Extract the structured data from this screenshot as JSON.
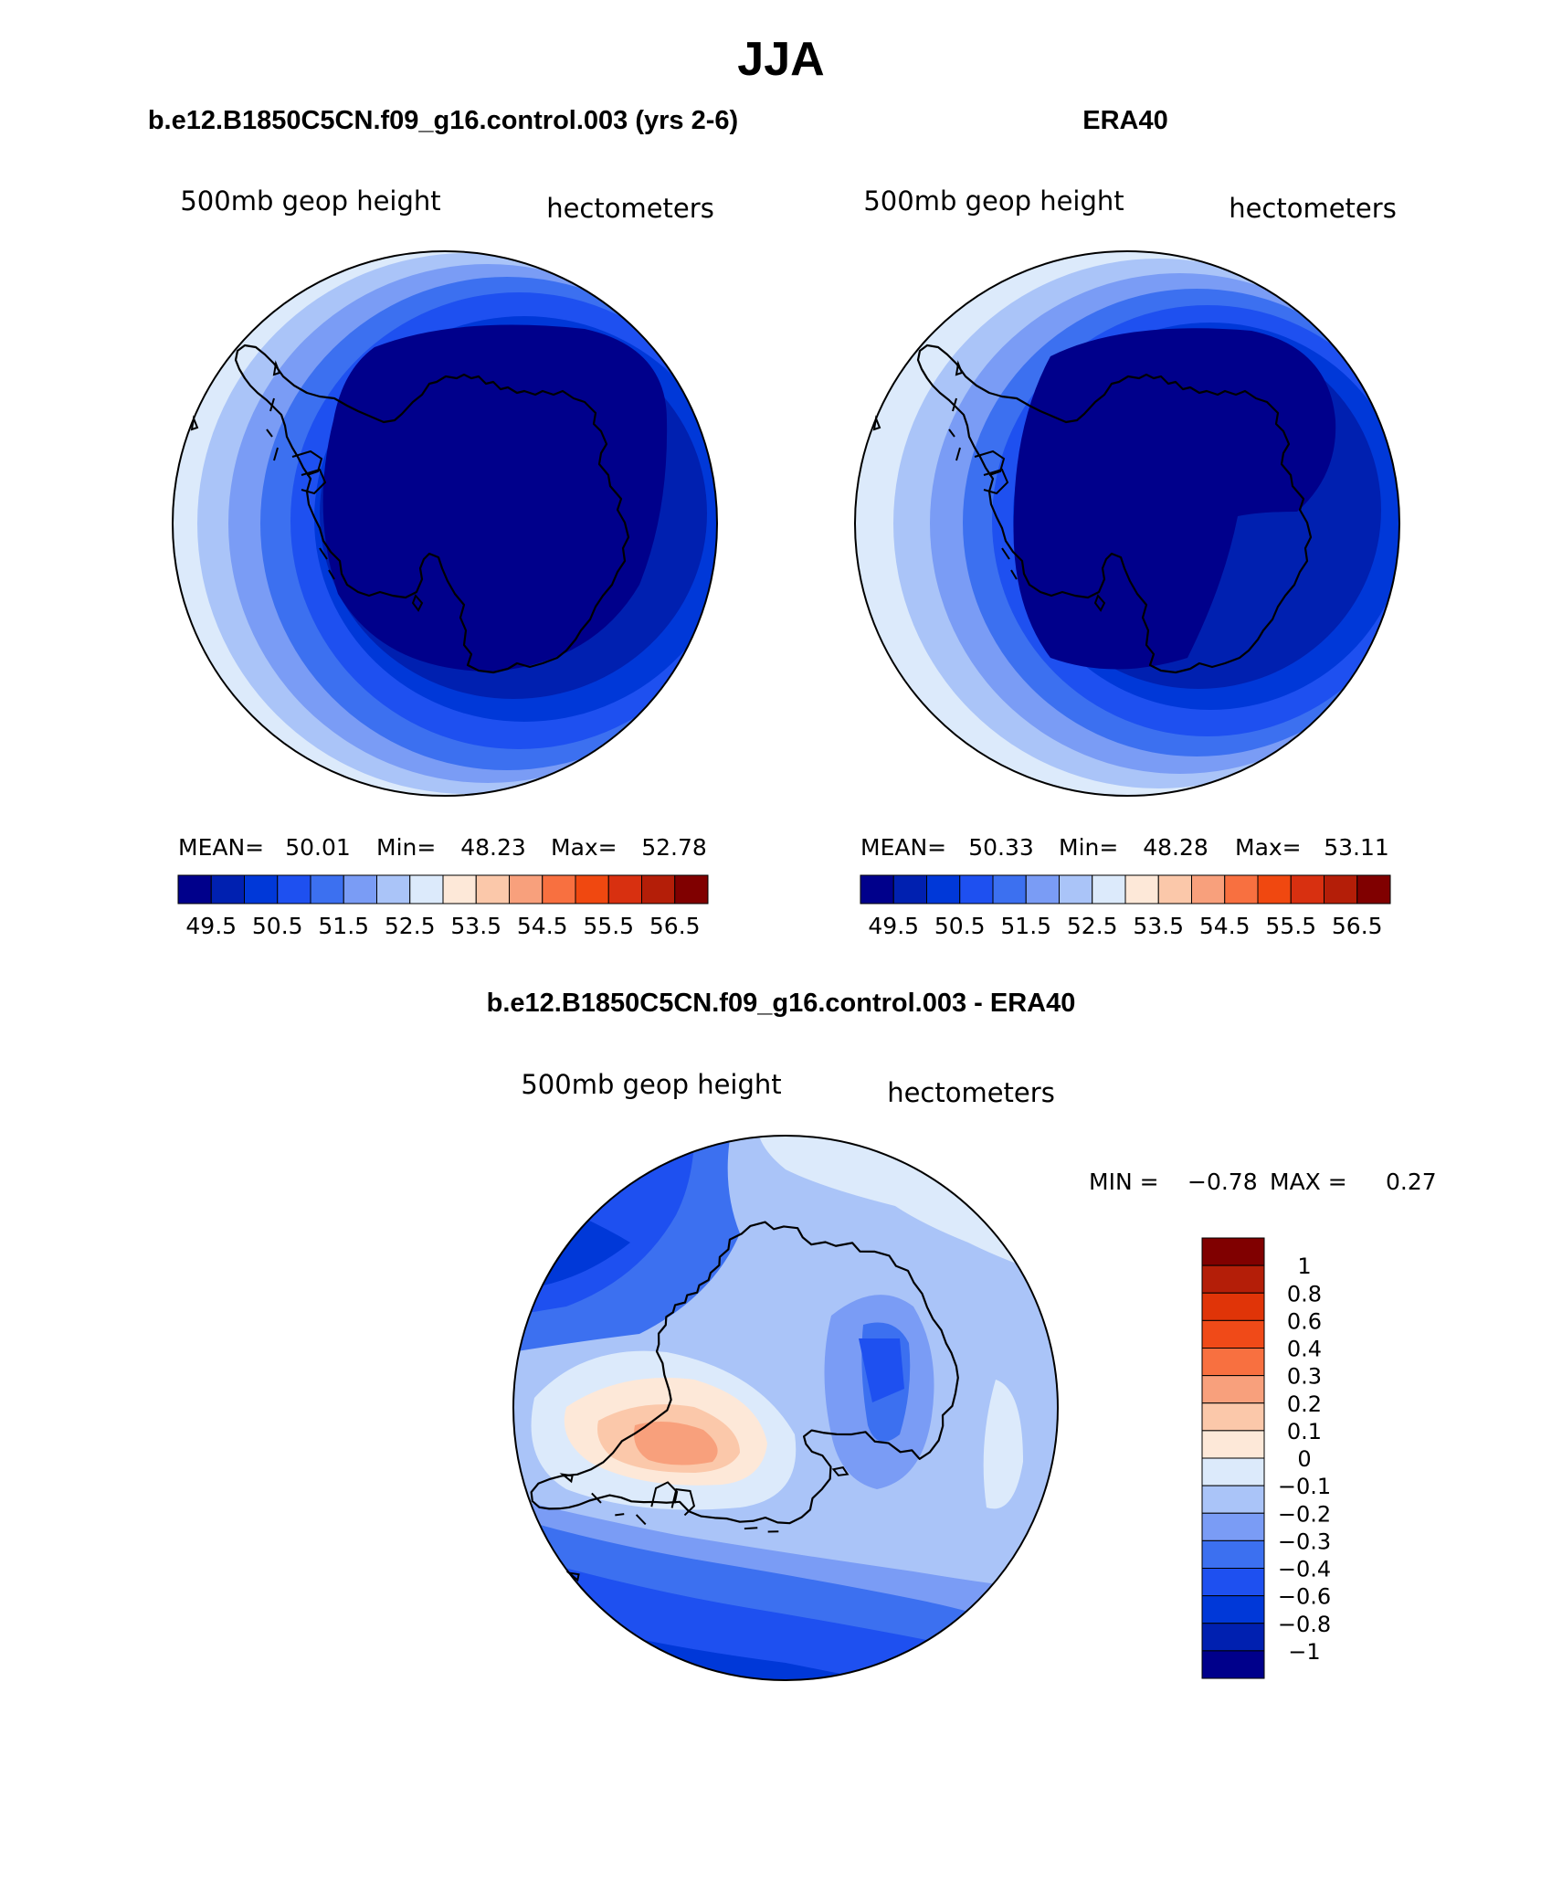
{
  "page_title": "JJA",
  "panels": {
    "model": {
      "title": "b.e12.B1850C5CN.f09_g16.control.003 (yrs 2-6)",
      "left_label": "500mb geop height",
      "right_label": "hectometers",
      "stats": {
        "mean_label": "MEAN=",
        "mean": "50.01",
        "min_label": "Min=",
        "min": "48.23",
        "max_label": "Max=",
        "max": "52.78"
      }
    },
    "obs": {
      "title": "ERA40",
      "left_label": "500mb geop height",
      "right_label": "hectometers",
      "stats": {
        "mean_label": "MEAN=",
        "mean": "50.33",
        "min_label": "Min=",
        "min": "48.28",
        "max_label": "Max=",
        "max": "53.11"
      }
    },
    "diff": {
      "title": "b.e12.B1850C5CN.f09_g16.control.003 - ERA40",
      "left_label": "500mb geop height",
      "right_label": "hectometers",
      "stats": {
        "min_label": "MIN =",
        "min": "−0.78",
        "max_label": "MAX =",
        "max": "0.27"
      }
    }
  },
  "colorbar_horizontal": {
    "colors": [
      "#00008b",
      "#0020b0",
      "#0038d8",
      "#1e50f0",
      "#3c70f0",
      "#7a9cf5",
      "#aac4f8",
      "#dceafb",
      "#fde8d8",
      "#fbc8aa",
      "#f8a07c",
      "#f87040",
      "#f04810",
      "#d83010",
      "#b41e08",
      "#800000"
    ],
    "labels": [
      "49.5",
      "50.5",
      "51.5",
      "52.5",
      "53.5",
      "54.5",
      "55.5",
      "56.5"
    ]
  },
  "colorbar_vertical": {
    "colors_top_to_bottom": [
      "#800000",
      "#b41e08",
      "#e03408",
      "#f04a18",
      "#f87040",
      "#f8a07c",
      "#fbc8aa",
      "#fde8d8",
      "#dceafb",
      "#aac4f8",
      "#7a9cf5",
      "#3c70f0",
      "#1e50f0",
      "#0038d8",
      "#0020b0",
      "#00008b"
    ],
    "labels": [
      "1",
      "0.8",
      "0.6",
      "0.4",
      "0.3",
      "0.2",
      "0.1",
      "0",
      "−0.1",
      "−0.2",
      "−0.3",
      "−0.4",
      "−0.6",
      "−0.8",
      "−1"
    ]
  },
  "chart_data": [
    {
      "type": "heatmap",
      "title": "b.e12.B1850C5CN.f09_g16.control.003 (yrs 2-6)",
      "variable": "500mb geop height",
      "units": "hectometers",
      "projection": "south polar stereographic",
      "mean": 50.01,
      "min": 48.23,
      "max": 52.78,
      "levels": [
        49.5,
        50,
        50.5,
        51,
        51.5,
        52,
        52.5,
        53,
        53.5,
        54,
        54.5,
        55,
        55.5,
        56,
        56.5
      ]
    },
    {
      "type": "heatmap",
      "title": "ERA40",
      "variable": "500mb geop height",
      "units": "hectometers",
      "projection": "south polar stereographic",
      "mean": 50.33,
      "min": 48.28,
      "max": 53.11,
      "levels": [
        49.5,
        50,
        50.5,
        51,
        51.5,
        52,
        52.5,
        53,
        53.5,
        54,
        54.5,
        55,
        55.5,
        56,
        56.5
      ]
    },
    {
      "type": "heatmap",
      "title": "b.e12.B1850C5CN.f09_g16.control.003 - ERA40",
      "variable": "500mb geop height",
      "units": "hectometers",
      "projection": "south polar stereographic",
      "min": -0.78,
      "max": 0.27,
      "levels": [
        -1,
        -0.8,
        -0.6,
        -0.4,
        -0.3,
        -0.2,
        -0.1,
        0,
        0.1,
        0.2,
        0.3,
        0.4,
        0.6,
        0.8,
        1
      ]
    }
  ]
}
